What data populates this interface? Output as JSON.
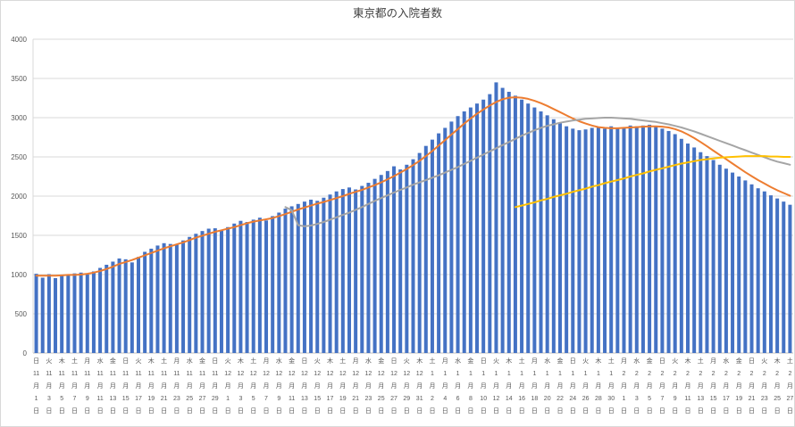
{
  "chart_data": {
    "type": "bar",
    "title": "東京都の入院者数",
    "xlabel": "",
    "ylabel": "",
    "ylim": [
      0,
      4000
    ],
    "yticks": [
      0,
      500,
      1000,
      1500,
      2000,
      2500,
      3000,
      3500,
      4000
    ],
    "grid": true,
    "legend": "none",
    "n_points": 119,
    "x_tick_every": 2,
    "colors": {
      "bar": "#4472C4",
      "orange": "#ED7D31",
      "gray": "#A5A5A5",
      "yellow": "#FFC000",
      "grid": "#D9D9D9",
      "axis": "#BFBFBF",
      "text": "#595959",
      "border": "#D9D9D9"
    },
    "x_tick_labels": [
      [
        "日",
        "11",
        "1"
      ],
      [
        "火",
        "11",
        "3"
      ],
      [
        "木",
        "11",
        "5"
      ],
      [
        "土",
        "11",
        "7"
      ],
      [
        "月",
        "11",
        "9"
      ],
      [
        "水",
        "11",
        "11"
      ],
      [
        "金",
        "11",
        "13"
      ],
      [
        "日",
        "11",
        "15"
      ],
      [
        "火",
        "11",
        "17"
      ],
      [
        "木",
        "11",
        "19"
      ],
      [
        "土",
        "11",
        "21"
      ],
      [
        "月",
        "11",
        "23"
      ],
      [
        "水",
        "11",
        "25"
      ],
      [
        "金",
        "11",
        "27"
      ],
      [
        "日",
        "11",
        "29"
      ],
      [
        "火",
        "12",
        "1"
      ],
      [
        "木",
        "12",
        "3"
      ],
      [
        "土",
        "12",
        "5"
      ],
      [
        "月",
        "12",
        "7"
      ],
      [
        "水",
        "12",
        "9"
      ],
      [
        "金",
        "12",
        "11"
      ],
      [
        "日",
        "12",
        "13"
      ],
      [
        "火",
        "12",
        "15"
      ],
      [
        "木",
        "12",
        "17"
      ],
      [
        "土",
        "12",
        "19"
      ],
      [
        "月",
        "12",
        "21"
      ],
      [
        "水",
        "12",
        "23"
      ],
      [
        "金",
        "12",
        "25"
      ],
      [
        "日",
        "12",
        "27"
      ],
      [
        "火",
        "12",
        "29"
      ],
      [
        "木",
        "12",
        "31"
      ],
      [
        "土",
        "1",
        "2"
      ],
      [
        "月",
        "1",
        "4"
      ],
      [
        "水",
        "1",
        "6"
      ],
      [
        "金",
        "1",
        "8"
      ],
      [
        "日",
        "1",
        "10"
      ],
      [
        "火",
        "1",
        "12"
      ],
      [
        "木",
        "1",
        "14"
      ],
      [
        "土",
        "1",
        "16"
      ],
      [
        "月",
        "1",
        "18"
      ],
      [
        "水",
        "1",
        "20"
      ],
      [
        "金",
        "1",
        "22"
      ],
      [
        "日",
        "1",
        "24"
      ],
      [
        "火",
        "1",
        "26"
      ],
      [
        "木",
        "1",
        "28"
      ],
      [
        "土",
        "1",
        "30"
      ],
      [
        "月",
        "2",
        "1"
      ],
      [
        "水",
        "2",
        "3"
      ],
      [
        "金",
        "2",
        "5"
      ],
      [
        "日",
        "2",
        "7"
      ],
      [
        "火",
        "2",
        "9"
      ],
      [
        "木",
        "2",
        "11"
      ],
      [
        "土",
        "2",
        "13"
      ],
      [
        "月",
        "2",
        "15"
      ],
      [
        "水",
        "2",
        "17"
      ],
      [
        "金",
        "2",
        "19"
      ],
      [
        "日",
        "2",
        "21"
      ],
      [
        "火",
        "2",
        "23"
      ],
      [
        "木",
        "2",
        "25"
      ],
      [
        "土",
        "2",
        "27"
      ]
    ],
    "series": [
      {
        "name": "bars",
        "type": "bar",
        "color": "#4472C4",
        "start": 0,
        "values": [
          1010,
          960,
          1005,
          955,
          1000,
          1005,
          1015,
          1025,
          1000,
          1040,
          1085,
          1125,
          1165,
          1205,
          1195,
          1155,
          1225,
          1290,
          1330,
          1370,
          1400,
          1390,
          1380,
          1435,
          1480,
          1520,
          1555,
          1585,
          1590,
          1560,
          1605,
          1650,
          1685,
          1670,
          1700,
          1725,
          1690,
          1745,
          1790,
          1840,
          1870,
          1900,
          1930,
          1955,
          1940,
          1980,
          2020,
          2060,
          2090,
          2110,
          2085,
          2130,
          2170,
          2220,
          2270,
          2320,
          2380,
          2340,
          2400,
          2470,
          2550,
          2640,
          2720,
          2800,
          2870,
          2950,
          3020,
          3080,
          3130,
          3180,
          3230,
          3300,
          3450,
          3380,
          3330,
          3280,
          3230,
          3180,
          3130,
          3080,
          3030,
          2980,
          2930,
          2890,
          2860,
          2840,
          2850,
          2870,
          2880,
          2860,
          2890,
          2870,
          2880,
          2900,
          2890,
          2900,
          2910,
          2890,
          2860,
          2830,
          2790,
          2730,
          2670,
          2620,
          2560,
          2510,
          2460,
          2400,
          2350,
          2300,
          2250,
          2200,
          2150,
          2100,
          2060,
          2010,
          1970,
          1930,
          1890
        ]
      },
      {
        "name": "orange",
        "type": "line",
        "color": "#ED7D31",
        "start": 0,
        "values": [
          985,
          985,
          985,
          985,
          990,
          995,
          995,
          1000,
          1010,
          1025,
          1045,
          1070,
          1100,
          1135,
          1160,
          1185,
          1215,
          1245,
          1275,
          1305,
          1335,
          1360,
          1385,
          1410,
          1440,
          1470,
          1495,
          1520,
          1545,
          1565,
          1585,
          1605,
          1630,
          1655,
          1675,
          1690,
          1705,
          1720,
          1745,
          1770,
          1800,
          1830,
          1855,
          1880,
          1905,
          1925,
          1950,
          1975,
          2000,
          2030,
          2055,
          2080,
          2110,
          2140,
          2175,
          2215,
          2255,
          2300,
          2345,
          2395,
          2450,
          2510,
          2575,
          2645,
          2715,
          2785,
          2855,
          2925,
          2990,
          3050,
          3105,
          3155,
          3200,
          3235,
          3255,
          3260,
          3255,
          3240,
          3215,
          3185,
          3150,
          3110,
          3070,
          3030,
          2990,
          2955,
          2925,
          2900,
          2880,
          2870,
          2865,
          2865,
          2870,
          2875,
          2880,
          2885,
          2890,
          2890,
          2885,
          2875,
          2855,
          2825,
          2785,
          2740,
          2690,
          2635,
          2580,
          2525,
          2470,
          2415,
          2360,
          2305,
          2255,
          2205,
          2160,
          2115,
          2075,
          2040,
          2005
        ]
      },
      {
        "name": "gray",
        "type": "line",
        "color": "#A5A5A5",
        "start": 39,
        "values": [
          1860,
          1820,
          1630,
          1615,
          1625,
          1645,
          1670,
          1700,
          1730,
          1760,
          1790,
          1825,
          1860,
          1900,
          1940,
          1975,
          2010,
          2045,
          2080,
          2110,
          2145,
          2175,
          2205,
          2235,
          2265,
          2300,
          2335,
          2370,
          2410,
          2450,
          2490,
          2530,
          2570,
          2610,
          2650,
          2690,
          2730,
          2770,
          2805,
          2840,
          2870,
          2895,
          2915,
          2935,
          2950,
          2965,
          2975,
          2985,
          2990,
          2995,
          3000,
          3000,
          2995,
          2990,
          2985,
          2975,
          2965,
          2955,
          2945,
          2930,
          2915,
          2895,
          2875,
          2850,
          2825,
          2795,
          2765,
          2735,
          2705,
          2675,
          2645,
          2615,
          2585,
          2555,
          2525,
          2495,
          2465,
          2440,
          2420,
          2400
        ]
      },
      {
        "name": "yellow",
        "type": "line",
        "color": "#FFC000",
        "start": 75,
        "values": [
          1860,
          1880,
          1900,
          1920,
          1945,
          1965,
          1990,
          2010,
          2030,
          2055,
          2075,
          2095,
          2120,
          2140,
          2165,
          2185,
          2205,
          2225,
          2250,
          2270,
          2290,
          2315,
          2335,
          2355,
          2375,
          2395,
          2415,
          2430,
          2445,
          2460,
          2470,
          2480,
          2490,
          2495,
          2500,
          2505,
          2510,
          2510,
          2510,
          2510,
          2505,
          2505,
          2500,
          2500
        ]
      }
    ]
  }
}
